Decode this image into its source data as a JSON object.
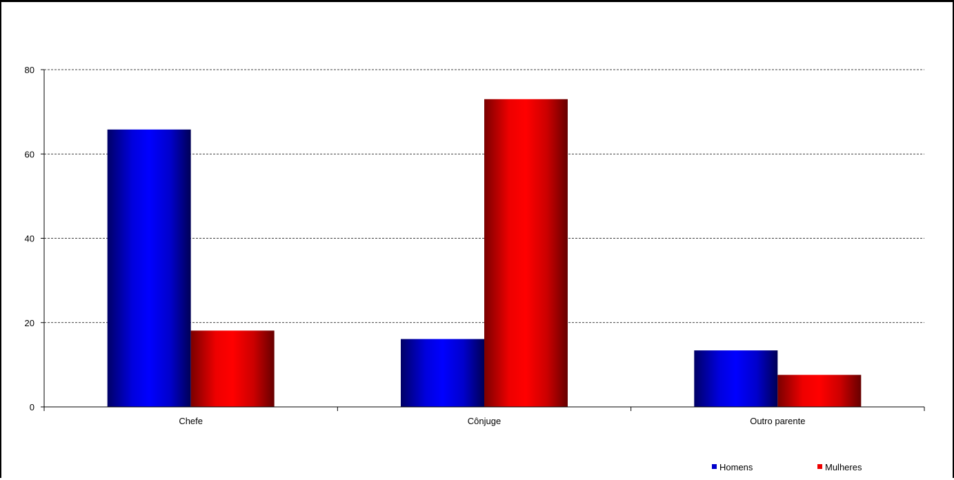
{
  "chart_data": {
    "type": "bar",
    "categories": [
      "Chefe",
      "Cônjuge",
      "Outro parente"
    ],
    "series": [
      {
        "name": "Homens",
        "values": [
          65.8,
          16.1,
          13.4
        ],
        "color": "#0000cc"
      },
      {
        "name": "Mulheres",
        "values": [
          18.1,
          73.0,
          7.6
        ],
        "color": "#ee0000"
      }
    ],
    "ylim": [
      0,
      80
    ],
    "yticks": [
      0,
      20,
      40,
      60,
      80
    ],
    "grid": true,
    "legend_position": "bottom-right"
  }
}
